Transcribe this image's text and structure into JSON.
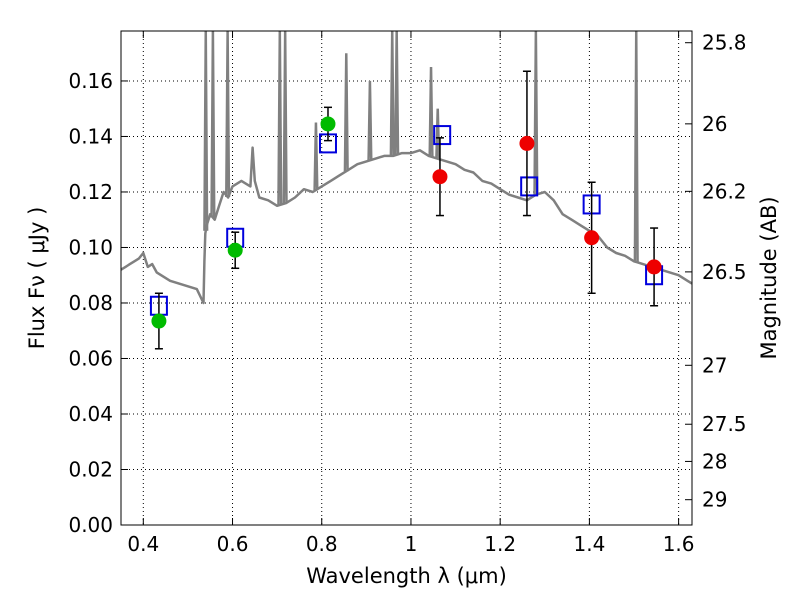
{
  "chart_data": {
    "type": "scatter",
    "title": "",
    "xlabel": "Wavelength  λ (μm)",
    "ylabel": "Flux  Fν  ( μJy )",
    "y2label": "Magnitude (AB)",
    "xlim": [
      0.35,
      1.63
    ],
    "ylim": [
      0.0,
      0.178
    ],
    "grid": true,
    "legend": "none",
    "x_ticks": [
      {
        "value": 0.4,
        "label": "0.4"
      },
      {
        "value": 0.6,
        "label": "0.6"
      },
      {
        "value": 0.8,
        "label": "0.8"
      },
      {
        "value": 1.0,
        "label": "1"
      },
      {
        "value": 1.2,
        "label": "1.2"
      },
      {
        "value": 1.4,
        "label": "1.4"
      },
      {
        "value": 1.6,
        "label": "1.6"
      }
    ],
    "y_ticks": [
      {
        "value": 0.0,
        "label": "0.00"
      },
      {
        "value": 0.02,
        "label": "0.02"
      },
      {
        "value": 0.04,
        "label": "0.04"
      },
      {
        "value": 0.06,
        "label": "0.06"
      },
      {
        "value": 0.08,
        "label": "0.08"
      },
      {
        "value": 0.1,
        "label": "0.10"
      },
      {
        "value": 0.12,
        "label": "0.12"
      },
      {
        "value": 0.14,
        "label": "0.14"
      },
      {
        "value": 0.16,
        "label": "0.16"
      }
    ],
    "y2_ticks": [
      {
        "value": 25.8,
        "label": "25.8"
      },
      {
        "value": 26.0,
        "label": "26"
      },
      {
        "value": 26.2,
        "label": "26.2"
      },
      {
        "value": 26.5,
        "label": "26.5"
      },
      {
        "value": 27.0,
        "label": "27"
      },
      {
        "value": 27.5,
        "label": "27.5"
      },
      {
        "value": 28.0,
        "label": "28"
      },
      {
        "value": 29.0,
        "label": "29"
      }
    ],
    "colors": {
      "optical": "#00bb00",
      "infrared": "#ee0000",
      "model": "#0000dd",
      "spectrum": "#808080",
      "errorbar": "#000000"
    },
    "observed_optical": [
      {
        "x": 0.435,
        "y": 0.0735,
        "err_low": 0.0635,
        "err_high": 0.0835
      },
      {
        "x": 0.606,
        "y": 0.099,
        "err_low": 0.0925,
        "err_high": 0.1055
      },
      {
        "x": 0.814,
        "y": 0.1445,
        "err_low": 0.1385,
        "err_high": 0.1505
      }
    ],
    "observed_infrared": [
      {
        "x": 1.065,
        "y": 0.1255,
        "err_low": 0.1115,
        "err_high": 0.1395
      },
      {
        "x": 1.26,
        "y": 0.1375,
        "err_low": 0.1115,
        "err_high": 0.1635
      },
      {
        "x": 1.405,
        "y": 0.1035,
        "err_low": 0.0835,
        "err_high": 0.1235
      },
      {
        "x": 1.545,
        "y": 0.093,
        "err_low": 0.079,
        "err_high": 0.107
      }
    ],
    "model_photometry": [
      {
        "x": 0.435,
        "y": 0.079
      },
      {
        "x": 0.606,
        "y": 0.1035
      },
      {
        "x": 0.814,
        "y": 0.1375
      },
      {
        "x": 1.07,
        "y": 0.1405
      },
      {
        "x": 1.265,
        "y": 0.122
      },
      {
        "x": 1.405,
        "y": 0.1155
      },
      {
        "x": 1.545,
        "y": 0.09
      }
    ],
    "spectrum": {
      "x": [
        0.35,
        0.36,
        0.37,
        0.38,
        0.39,
        0.4,
        0.41,
        0.42,
        0.43,
        0.44,
        0.46,
        0.48,
        0.5,
        0.52,
        0.535,
        0.537,
        0.539,
        0.542,
        0.55,
        0.56,
        0.57,
        0.58,
        0.59,
        0.6,
        0.62,
        0.64,
        0.645,
        0.65,
        0.66,
        0.68,
        0.7,
        0.72,
        0.74,
        0.76,
        0.78,
        0.8,
        0.82,
        0.84,
        0.86,
        0.88,
        0.9,
        0.92,
        0.94,
        0.96,
        0.98,
        1.0,
        1.02,
        1.04,
        1.06,
        1.08,
        1.1,
        1.12,
        1.14,
        1.16,
        1.18,
        1.2,
        1.22,
        1.24,
        1.26,
        1.28,
        1.3,
        1.32,
        1.34,
        1.36,
        1.38,
        1.4,
        1.42,
        1.44,
        1.46,
        1.48,
        1.5,
        1.52,
        1.54,
        1.56,
        1.58,
        1.6,
        1.62,
        1.63
      ],
      "y": [
        0.092,
        0.093,
        0.094,
        0.095,
        0.096,
        0.098,
        0.093,
        0.094,
        0.091,
        0.09,
        0.088,
        0.087,
        0.086,
        0.085,
        0.08,
        0.095,
        0.105,
        0.108,
        0.112,
        0.11,
        0.115,
        0.12,
        0.118,
        0.122,
        0.124,
        0.122,
        0.136,
        0.124,
        0.118,
        0.117,
        0.115,
        0.116,
        0.118,
        0.121,
        0.12,
        0.122,
        0.124,
        0.126,
        0.128,
        0.13,
        0.131,
        0.132,
        0.133,
        0.133,
        0.134,
        0.134,
        0.135,
        0.133,
        0.132,
        0.131,
        0.13,
        0.128,
        0.127,
        0.124,
        0.123,
        0.121,
        0.119,
        0.118,
        0.117,
        0.119,
        0.12,
        0.117,
        0.112,
        0.11,
        0.108,
        0.106,
        0.104,
        0.1,
        0.098,
        0.097,
        0.095,
        0.094,
        0.093,
        0.092,
        0.091,
        0.09,
        0.088,
        0.087
      ]
    },
    "emission_lines": [
      {
        "x": 0.54,
        "y": 0.178
      },
      {
        "x": 0.556,
        "y": 0.178
      },
      {
        "x": 0.589,
        "y": 0.178
      },
      {
        "x": 0.706,
        "y": 0.178
      },
      {
        "x": 0.718,
        "y": 0.178
      },
      {
        "x": 0.787,
        "y": 0.145
      },
      {
        "x": 0.855,
        "y": 0.17
      },
      {
        "x": 0.908,
        "y": 0.16
      },
      {
        "x": 0.958,
        "y": 0.178
      },
      {
        "x": 0.968,
        "y": 0.178
      },
      {
        "x": 1.045,
        "y": 0.165
      },
      {
        "x": 1.06,
        "y": 0.15
      },
      {
        "x": 1.28,
        "y": 0.178
      },
      {
        "x": 1.505,
        "y": 0.178
      }
    ]
  }
}
